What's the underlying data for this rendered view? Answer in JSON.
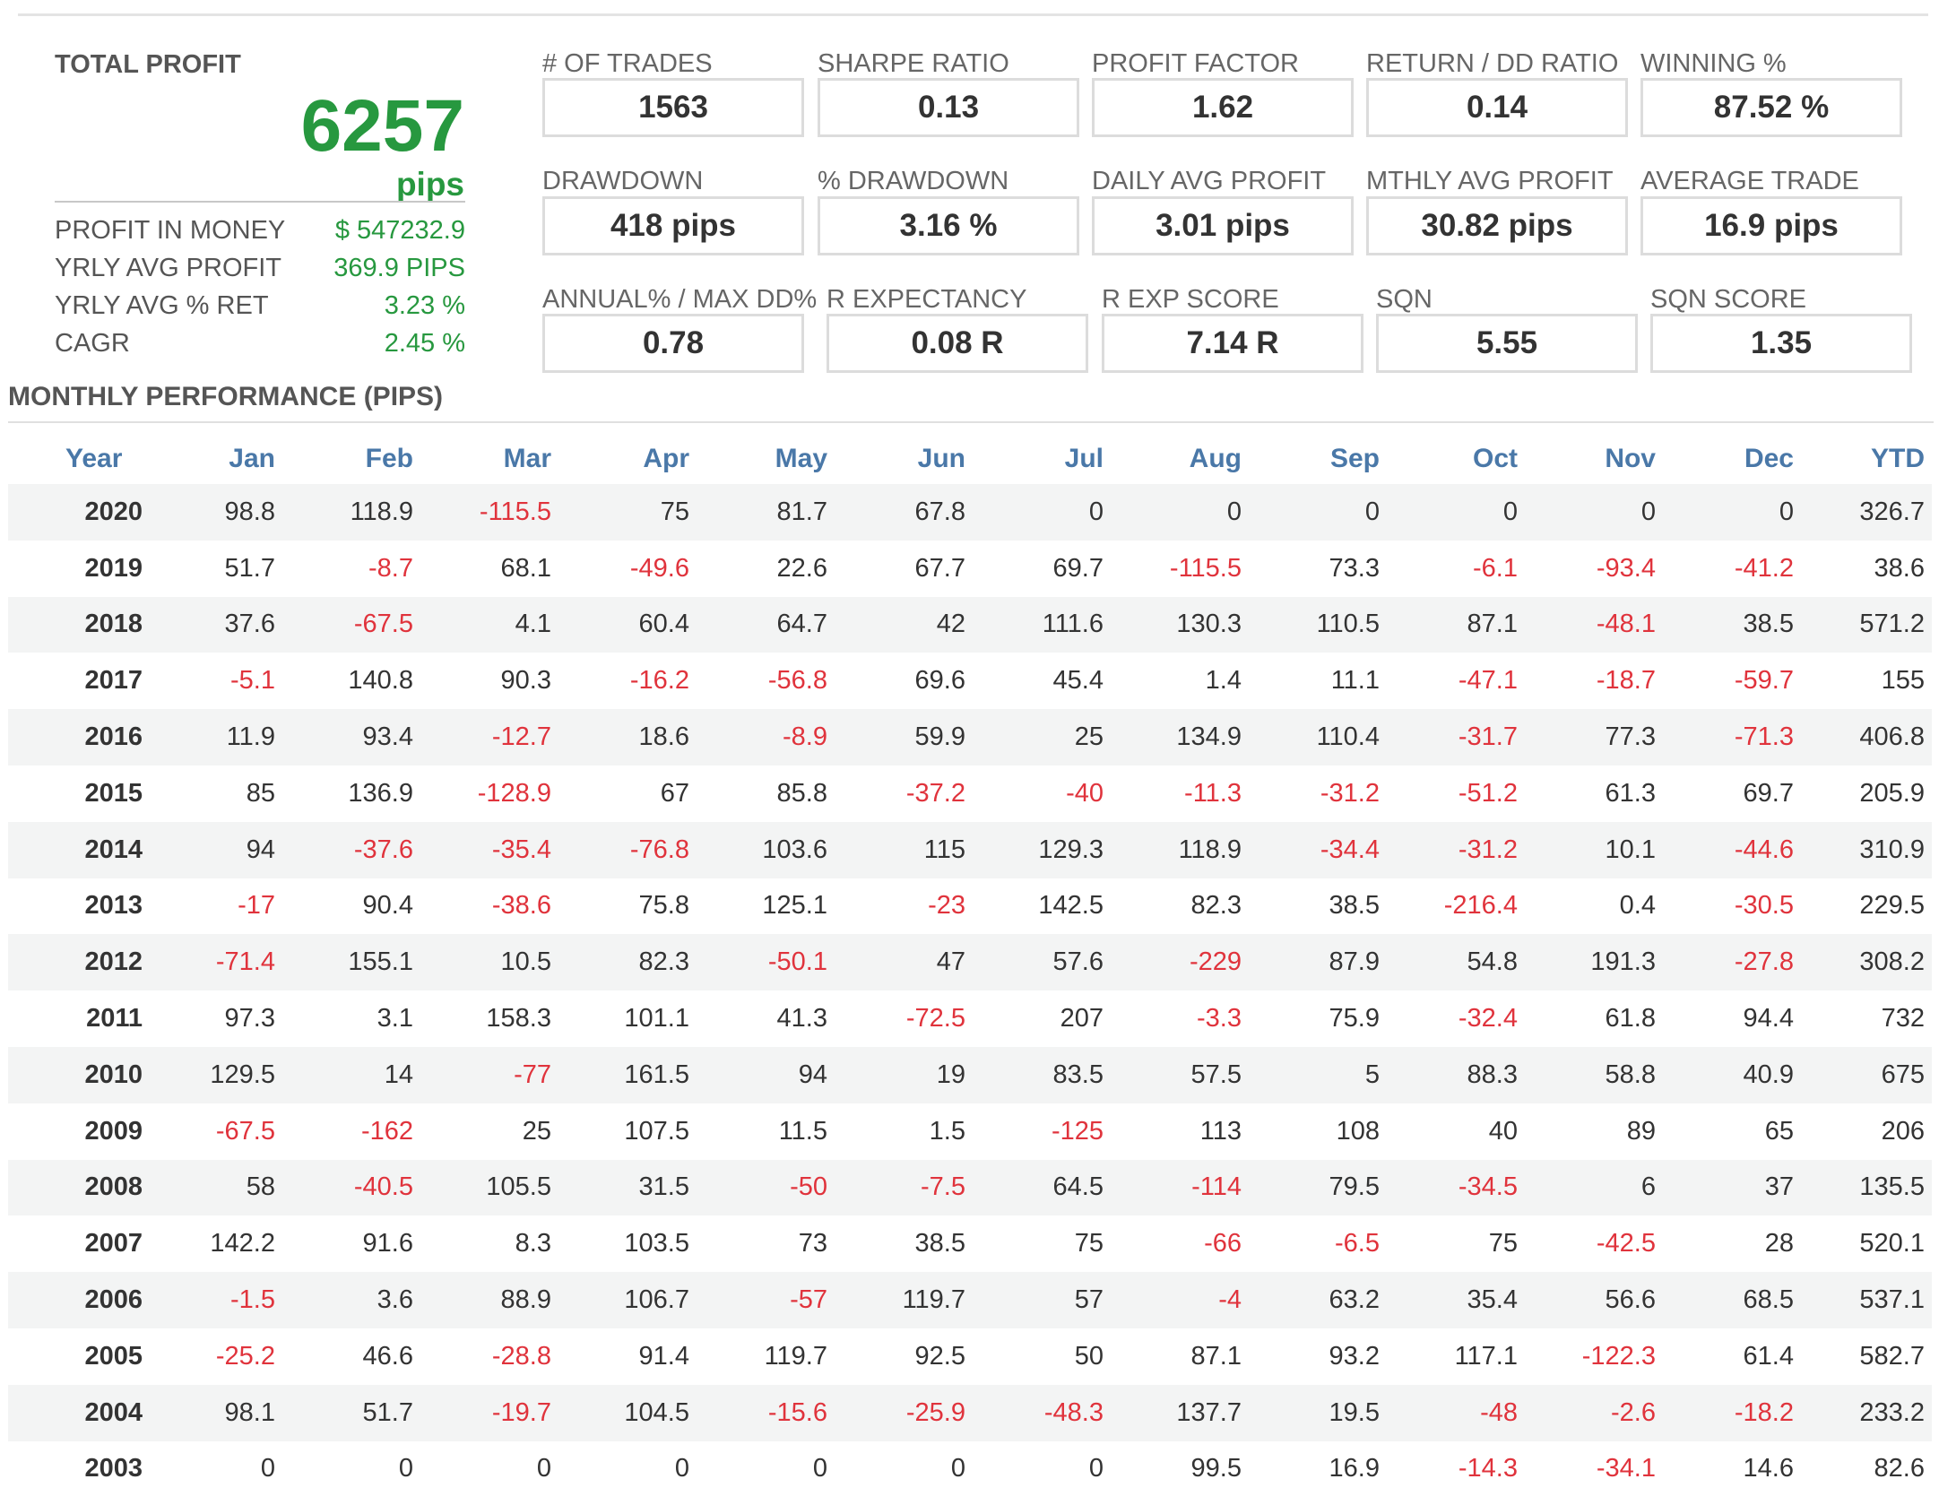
{
  "total_profit": {
    "title": "TOTAL PROFIT",
    "value": "6257",
    "unit": "pips",
    "stats": [
      {
        "label": "PROFIT IN MONEY",
        "value": "$ 547232.9"
      },
      {
        "label": "YRLY AVG PROFIT",
        "value": "369.9 PIPS"
      },
      {
        "label": "YRLY AVG % RET",
        "value": "3.23 %"
      },
      {
        "label": "CAGR",
        "value": "2.45 %"
      }
    ]
  },
  "metrics": [
    [
      {
        "label": "# OF TRADES",
        "value": "1563"
      },
      {
        "label": "SHARPE RATIO",
        "value": "0.13"
      },
      {
        "label": "PROFIT FACTOR",
        "value": "1.62"
      },
      {
        "label": "RETURN / DD RATIO",
        "value": "0.14"
      },
      {
        "label": "WINNING %",
        "value": "87.52 %"
      }
    ],
    [
      {
        "label": "DRAWDOWN",
        "value": "418 pips"
      },
      {
        "label": "% DRAWDOWN",
        "value": "3.16 %"
      },
      {
        "label": "DAILY AVG PROFIT",
        "value": "3.01 pips"
      },
      {
        "label": "MTHLY AVG PROFIT",
        "value": "30.82 pips"
      },
      {
        "label": "AVERAGE TRADE",
        "value": "16.9 pips"
      }
    ],
    [
      {
        "label": "ANNUAL% / MAX DD%",
        "value": "0.78"
      },
      {
        "label": "R EXPECTANCY",
        "value": "0.08 R"
      },
      {
        "label": "R EXP SCORE",
        "value": "7.14 R"
      },
      {
        "label": "SQN",
        "value": "5.55"
      },
      {
        "label": "SQN SCORE",
        "value": "1.35"
      }
    ]
  ],
  "monthly": {
    "title": "MONTHLY PERFORMANCE (PIPS)",
    "columns": [
      "Year",
      "Jan",
      "Feb",
      "Mar",
      "Apr",
      "May",
      "Jun",
      "Jul",
      "Aug",
      "Sep",
      "Oct",
      "Nov",
      "Dec",
      "YTD"
    ],
    "rows": [
      [
        "2020",
        "98.8",
        "118.9",
        "-115.5",
        "75",
        "81.7",
        "67.8",
        "0",
        "0",
        "0",
        "0",
        "0",
        "0",
        "326.7"
      ],
      [
        "2019",
        "51.7",
        "-8.7",
        "68.1",
        "-49.6",
        "22.6",
        "67.7",
        "69.7",
        "-115.5",
        "73.3",
        "-6.1",
        "-93.4",
        "-41.2",
        "38.6"
      ],
      [
        "2018",
        "37.6",
        "-67.5",
        "4.1",
        "60.4",
        "64.7",
        "42",
        "111.6",
        "130.3",
        "110.5",
        "87.1",
        "-48.1",
        "38.5",
        "571.2"
      ],
      [
        "2017",
        "-5.1",
        "140.8",
        "90.3",
        "-16.2",
        "-56.8",
        "69.6",
        "45.4",
        "1.4",
        "11.1",
        "-47.1",
        "-18.7",
        "-59.7",
        "155"
      ],
      [
        "2016",
        "11.9",
        "93.4",
        "-12.7",
        "18.6",
        "-8.9",
        "59.9",
        "25",
        "134.9",
        "110.4",
        "-31.7",
        "77.3",
        "-71.3",
        "406.8"
      ],
      [
        "2015",
        "85",
        "136.9",
        "-128.9",
        "67",
        "85.8",
        "-37.2",
        "-40",
        "-11.3",
        "-31.2",
        "-51.2",
        "61.3",
        "69.7",
        "205.9"
      ],
      [
        "2014",
        "94",
        "-37.6",
        "-35.4",
        "-76.8",
        "103.6",
        "115",
        "129.3",
        "118.9",
        "-34.4",
        "-31.2",
        "10.1",
        "-44.6",
        "310.9"
      ],
      [
        "2013",
        "-17",
        "90.4",
        "-38.6",
        "75.8",
        "125.1",
        "-23",
        "142.5",
        "82.3",
        "38.5",
        "-216.4",
        "0.4",
        "-30.5",
        "229.5"
      ],
      [
        "2012",
        "-71.4",
        "155.1",
        "10.5",
        "82.3",
        "-50.1",
        "47",
        "57.6",
        "-229",
        "87.9",
        "54.8",
        "191.3",
        "-27.8",
        "308.2"
      ],
      [
        "2011",
        "97.3",
        "3.1",
        "158.3",
        "101.1",
        "41.3",
        "-72.5",
        "207",
        "-3.3",
        "75.9",
        "-32.4",
        "61.8",
        "94.4",
        "732"
      ],
      [
        "2010",
        "129.5",
        "14",
        "-77",
        "161.5",
        "94",
        "19",
        "83.5",
        "57.5",
        "5",
        "88.3",
        "58.8",
        "40.9",
        "675"
      ],
      [
        "2009",
        "-67.5",
        "-162",
        "25",
        "107.5",
        "11.5",
        "1.5",
        "-125",
        "113",
        "108",
        "40",
        "89",
        "65",
        "206"
      ],
      [
        "2008",
        "58",
        "-40.5",
        "105.5",
        "31.5",
        "-50",
        "-7.5",
        "64.5",
        "-114",
        "79.5",
        "-34.5",
        "6",
        "37",
        "135.5"
      ],
      [
        "2007",
        "142.2",
        "91.6",
        "8.3",
        "103.5",
        "73",
        "38.5",
        "75",
        "-66",
        "-6.5",
        "75",
        "-42.5",
        "28",
        "520.1"
      ],
      [
        "2006",
        "-1.5",
        "3.6",
        "88.9",
        "106.7",
        "-57",
        "119.7",
        "57",
        "-4",
        "63.2",
        "35.4",
        "56.6",
        "68.5",
        "537.1"
      ],
      [
        "2005",
        "-25.2",
        "46.6",
        "-28.8",
        "91.4",
        "119.7",
        "92.5",
        "50",
        "87.1",
        "93.2",
        "117.1",
        "-122.3",
        "61.4",
        "582.7"
      ],
      [
        "2004",
        "98.1",
        "51.7",
        "-19.7",
        "104.5",
        "-15.6",
        "-25.9",
        "-48.3",
        "137.7",
        "19.5",
        "-48",
        "-2.6",
        "-18.2",
        "233.2"
      ],
      [
        "2003",
        "0",
        "0",
        "0",
        "0",
        "0",
        "0",
        "0",
        "99.5",
        "16.9",
        "-14.3",
        "-34.1",
        "14.6",
        "82.6"
      ]
    ]
  }
}
